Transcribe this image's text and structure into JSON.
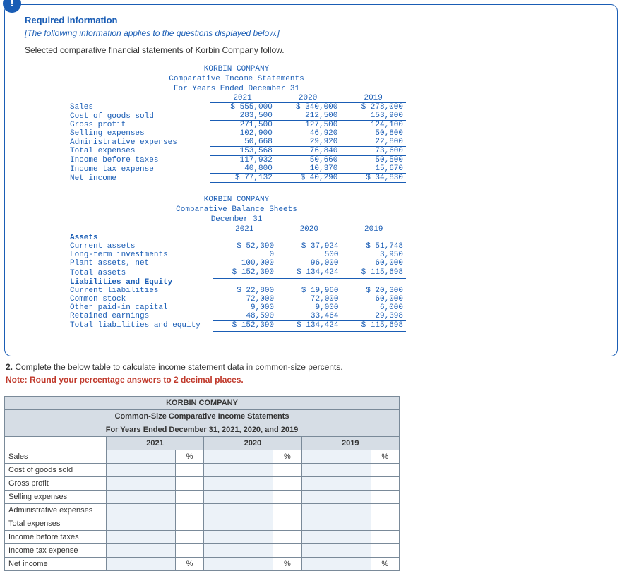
{
  "header": {
    "badge": "!",
    "title": "Required information",
    "italic": "[The following information applies to the questions displayed below.]",
    "intro": "Selected comparative financial statements of Korbin Company follow."
  },
  "income_stmt": {
    "company": "KORBIN COMPANY",
    "title": "Comparative Income Statements",
    "period": "For Years Ended December 31",
    "years": [
      "2021",
      "2020",
      "2019"
    ],
    "rows": [
      {
        "label": "Sales",
        "v": [
          "$ 555,000",
          "$ 340,000",
          "$ 278,000"
        ],
        "top": false
      },
      {
        "label": "Cost of goods sold",
        "v": [
          "283,500",
          "212,500",
          "153,900"
        ],
        "underline": true
      },
      {
        "label": "Gross profit",
        "v": [
          "271,500",
          "127,500",
          "124,100"
        ]
      },
      {
        "label": "Selling expenses",
        "v": [
          "102,900",
          "46,920",
          "50,800"
        ]
      },
      {
        "label": "Administrative expenses",
        "v": [
          "50,668",
          "29,920",
          "22,800"
        ],
        "underline": true
      },
      {
        "label": "Total expenses",
        "v": [
          "153,568",
          "76,840",
          "73,600"
        ],
        "underline": true
      },
      {
        "label": "Income before taxes",
        "v": [
          "117,932",
          "50,660",
          "50,500"
        ]
      },
      {
        "label": "Income tax expense",
        "v": [
          "40,800",
          "10,370",
          "15,670"
        ],
        "underline": true
      },
      {
        "label": "Net income",
        "v": [
          "$ 77,132",
          "$ 40,290",
          "$ 34,830"
        ],
        "double": true
      }
    ]
  },
  "balance_sheet": {
    "company": "KORBIN COMPANY",
    "title": "Comparative Balance Sheets",
    "period": "December 31",
    "years": [
      "2021",
      "2020",
      "2019"
    ],
    "assets_label": "Assets",
    "assets": [
      {
        "label": "Current assets",
        "v": [
          "$ 52,390",
          "$ 37,924",
          "$ 51,748"
        ]
      },
      {
        "label": "Long-term investments",
        "v": [
          "0",
          "500",
          "3,950"
        ]
      },
      {
        "label": "Plant assets, net",
        "v": [
          "100,000",
          "96,000",
          "60,000"
        ],
        "underline": true
      },
      {
        "label": "Total assets",
        "v": [
          "$ 152,390",
          "$ 134,424",
          "$ 115,698"
        ],
        "double": true
      }
    ],
    "liab_label": "Liabilities and Equity",
    "liab": [
      {
        "label": "Current liabilities",
        "v": [
          "$ 22,800",
          "$ 19,960",
          "$ 20,300"
        ]
      },
      {
        "label": "Common stock",
        "v": [
          "72,000",
          "72,000",
          "60,000"
        ]
      },
      {
        "label": "Other paid-in capital",
        "v": [
          "9,000",
          "9,000",
          "6,000"
        ]
      },
      {
        "label": "Retained earnings",
        "v": [
          "48,590",
          "33,464",
          "29,398"
        ],
        "underline": true
      },
      {
        "label": "Total liabilities and equity",
        "v": [
          "$ 152,390",
          "$ 134,424",
          "$ 115,698"
        ],
        "double": true
      }
    ]
  },
  "q2": {
    "text_prefix": "2. ",
    "text": "Complete the below table to calculate income statement data in common-size percents.",
    "note": "Note: Round your percentage answers to 2 decimal places."
  },
  "answer_table": {
    "company": "KORBIN COMPANY",
    "title": "Common-Size Comparative Income Statements",
    "period": "For Years Ended December 31, 2021, 2020, and 2019",
    "years": [
      "2021",
      "2020",
      "2019"
    ],
    "pct": "%",
    "rows": [
      {
        "label": "Sales",
        "show_pct": true
      },
      {
        "label": "Cost of goods sold",
        "show_pct": false
      },
      {
        "label": "Gross profit",
        "show_pct": false
      },
      {
        "label": "Selling expenses",
        "show_pct": false
      },
      {
        "label": "Administrative expenses",
        "show_pct": false
      },
      {
        "label": "Total expenses",
        "show_pct": false
      },
      {
        "label": "Income before taxes",
        "show_pct": false
      },
      {
        "label": "Income tax expense",
        "show_pct": false
      },
      {
        "label": "Net income",
        "show_pct": true
      }
    ]
  },
  "colors": {
    "brand_blue": "#1a5db5",
    "header_bg": "#d6dde5",
    "input_bg": "#ecf2f8",
    "note_red": "#c0392b",
    "border_gray": "#7a8a99"
  }
}
